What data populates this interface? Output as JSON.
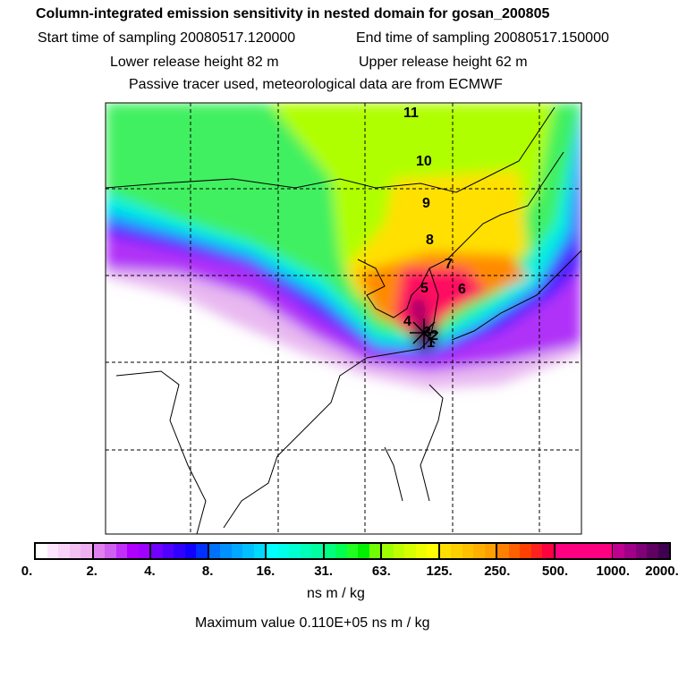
{
  "header": {
    "title": "Column-integrated emission sensitivity in nested domain for gosan_200805",
    "start_time": "Start time of sampling 20080517.120000",
    "end_time": "End time of sampling 20080517.150000",
    "lower_height": "Lower release height   82 m",
    "upper_height": "Upper release height   62 m",
    "tracer_note": "Passive tracer used, meteorological data are from ECMWF"
  },
  "map": {
    "trajectory_labels": [
      "1",
      "2",
      "3",
      "4",
      "5",
      "6",
      "7",
      "8",
      "9",
      "10",
      "11"
    ]
  },
  "colorbar": {
    "tick_labels": [
      "0.",
      "2.",
      "4.",
      "8.",
      "16.",
      "31.",
      "63.",
      "125.",
      "250.",
      "500.",
      "1000.",
      "2000."
    ],
    "groups": [
      [
        "#ffffff",
        "#fde6fd",
        "#f8d4f8",
        "#f3c2f3",
        "#eeb0ee"
      ],
      [
        "#e080f0",
        "#d060f0",
        "#c030f8",
        "#b000ff",
        "#a000ff"
      ],
      [
        "#7000ff",
        "#5000ff",
        "#3000ff",
        "#1000ff",
        "#0030ff"
      ],
      [
        "#0070ff",
        "#0090ff",
        "#00a8ff",
        "#00c0ff",
        "#00d8ff"
      ],
      [
        "#00ffff",
        "#00ffe8",
        "#00ffd0",
        "#00ffb8",
        "#00ffa0"
      ],
      [
        "#00ff80",
        "#00ff50",
        "#20ff20",
        "#00f000",
        "#70ff00"
      ],
      [
        "#a0ff00",
        "#c0ff00",
        "#d8ff00",
        "#ecff00",
        "#ffff00"
      ],
      [
        "#ffe000",
        "#ffd000",
        "#ffc000",
        "#ffb000",
        "#ffa000"
      ],
      [
        "#ff8000",
        "#ff6000",
        "#ff4000",
        "#ff2020",
        "#ff0040"
      ],
      [
        "#ff0080",
        "#ff0080",
        "#ff0080",
        "#ff0080",
        "#ff0080"
      ],
      [
        "#c00090",
        "#a00088",
        "#800078",
        "#600060",
        "#400050"
      ]
    ],
    "unit": "ns m / kg",
    "max_value": "Maximum value  0.110E+05 ns m / kg"
  }
}
